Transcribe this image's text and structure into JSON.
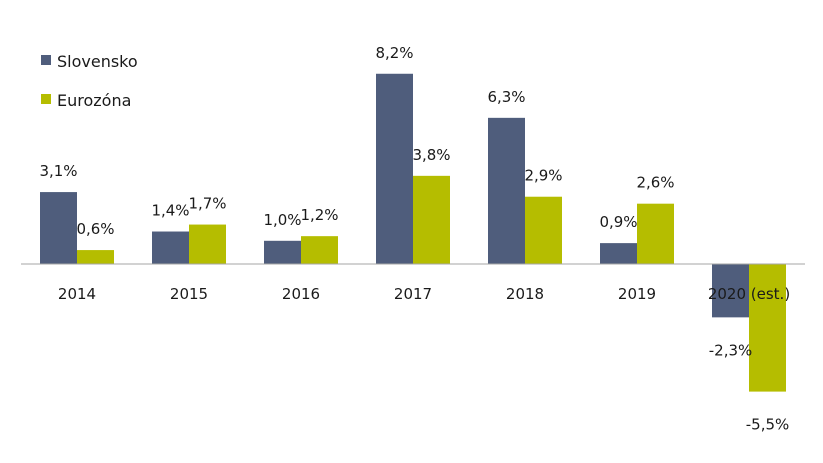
{
  "chart_data": {
    "type": "bar",
    "categories": [
      "2014",
      "2015",
      "2016",
      "2017",
      "2018",
      "2019",
      "2020 (est.)"
    ],
    "series": [
      {
        "name": "Slovensko",
        "color": "#4f5d7c",
        "values": [
          3.1,
          1.4,
          1.0,
          8.2,
          6.3,
          0.9,
          -2.3
        ],
        "labels": [
          "3,1%",
          "1,4%",
          "1,0%",
          "8,2%",
          "6,3%",
          "0,9%",
          "-2,3%"
        ]
      },
      {
        "name": "Eurozóna",
        "color": "#b5bd00",
        "values": [
          0.6,
          1.7,
          1.2,
          3.8,
          2.9,
          2.6,
          -5.5
        ],
        "labels": [
          "0,6%",
          "1,7%",
          "1,2%",
          "3,8%",
          "2,9%",
          "2,6%",
          "-5,5%"
        ]
      }
    ],
    "title": "",
    "xlabel": "",
    "ylabel": "",
    "ylim": [
      -5.5,
      8.2
    ],
    "legend": "top-left",
    "grid": false
  }
}
